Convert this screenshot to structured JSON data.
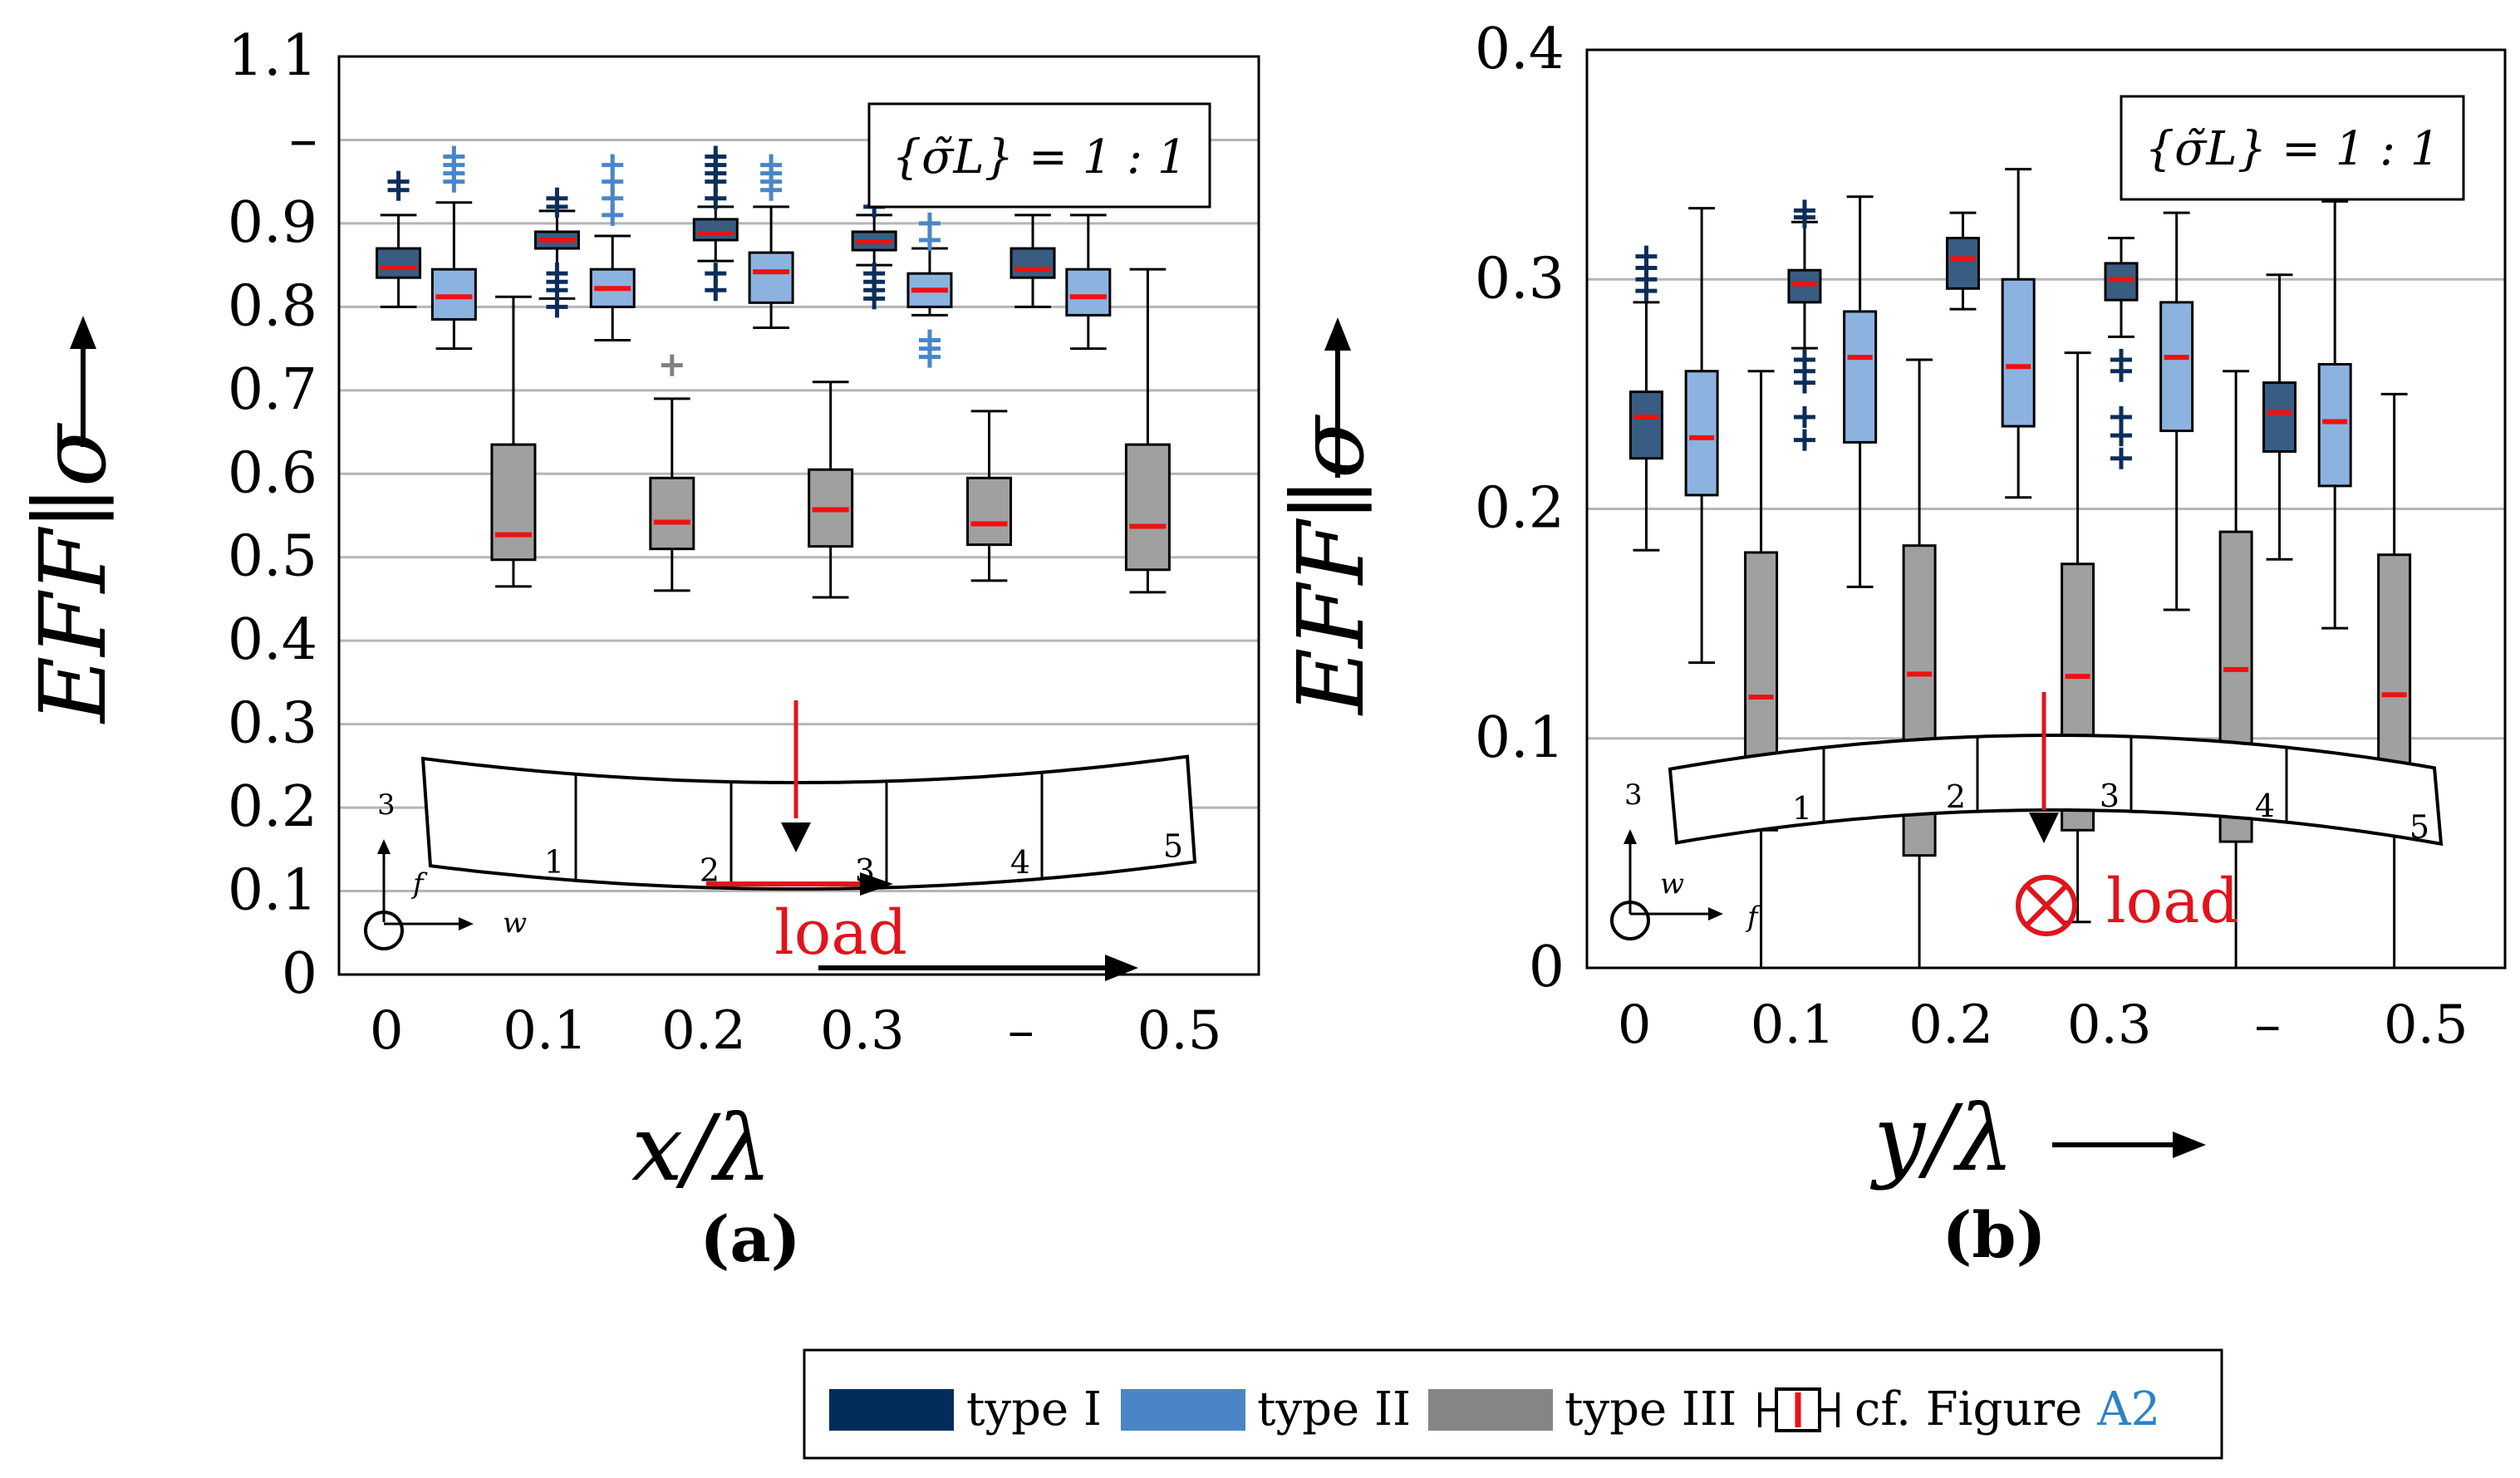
{
  "chart_data": [
    {
      "type": "box",
      "panel_label": "(a)",
      "xlabel": "x/λ",
      "ylabel": "EFF∥σ",
      "annotation": "{σ̃L} = 1 : 1",
      "ylim": [
        0,
        1.1
      ],
      "yticks": [
        "0",
        "0.1",
        "0.2",
        "0.3",
        "0.4",
        "0.5",
        "0.6",
        "0.7",
        "0.8",
        "0.9",
        "–",
        "1.1"
      ],
      "xlim": [
        -0.03,
        0.55
      ],
      "xticks": [
        "0",
        "0.1",
        "0.2",
        "0.3",
        "–",
        "0.5"
      ],
      "grid": true,
      "groups": [
        0.025,
        0.125,
        0.225,
        0.325,
        0.425
      ],
      "series": [
        {
          "name": "type I",
          "offset": -0.0175,
          "boxes": [
            {
              "whislo": 0.8,
              "q1": 0.835,
              "med": 0.847,
              "q3": 0.87,
              "whishi": 0.91,
              "fliers": [
                0.94,
                0.95
              ]
            },
            {
              "whislo": 0.81,
              "q1": 0.87,
              "med": 0.88,
              "q3": 0.89,
              "whishi": 0.915,
              "fliers": [
                0.8,
                0.82,
                0.83,
                0.84,
                0.92,
                0.93
              ]
            },
            {
              "whislo": 0.855,
              "q1": 0.88,
              "med": 0.888,
              "q3": 0.905,
              "whishi": 0.92,
              "fliers": [
                0.82,
                0.84,
                0.93,
                0.95,
                0.96,
                0.97,
                0.98
              ]
            },
            {
              "whislo": 0.85,
              "q1": 0.868,
              "med": 0.878,
              "q3": 0.89,
              "whishi": 0.91,
              "fliers": [
                0.81,
                0.82,
                0.83,
                0.84,
                0.92
              ]
            },
            {
              "whislo": 0.8,
              "q1": 0.835,
              "med": 0.845,
              "q3": 0.87,
              "whishi": 0.91,
              "fliers": []
            }
          ]
        },
        {
          "name": "type II",
          "offset": 0.0175,
          "boxes": [
            {
              "whislo": 0.75,
              "q1": 0.785,
              "med": 0.812,
              "q3": 0.845,
              "whishi": 0.925,
              "fliers": [
                0.95,
                0.96,
                0.97,
                0.98
              ]
            },
            {
              "whislo": 0.76,
              "q1": 0.8,
              "med": 0.822,
              "q3": 0.845,
              "whishi": 0.885,
              "fliers": [
                0.91,
                0.93,
                0.95,
                0.97
              ]
            },
            {
              "whislo": 0.775,
              "q1": 0.805,
              "med": 0.842,
              "q3": 0.865,
              "whishi": 0.92,
              "fliers": [
                0.94,
                0.95,
                0.96,
                0.97
              ]
            },
            {
              "whislo": 0.79,
              "q1": 0.8,
              "med": 0.82,
              "q3": 0.84,
              "whishi": 0.87,
              "fliers": [
                0.74,
                0.75,
                0.76,
                0.88,
                0.9
              ]
            },
            {
              "whislo": 0.75,
              "q1": 0.79,
              "med": 0.812,
              "q3": 0.845,
              "whishi": 0.91,
              "fliers": []
            }
          ]
        },
        {
          "name": "type III",
          "offset": 0.055,
          "boxes": [
            {
              "whislo": 0.465,
              "q1": 0.497,
              "med": 0.527,
              "q3": 0.635,
              "whishi": 0.812,
              "fliers": []
            },
            {
              "whislo": 0.46,
              "q1": 0.51,
              "med": 0.542,
              "q3": 0.595,
              "whishi": 0.69,
              "fliers": [
                0.73
              ]
            },
            {
              "whislo": 0.452,
              "q1": 0.513,
              "med": 0.557,
              "q3": 0.605,
              "whishi": 0.71,
              "fliers": []
            },
            {
              "whislo": 0.472,
              "q1": 0.515,
              "med": 0.54,
              "q3": 0.595,
              "whishi": 0.675,
              "fliers": []
            },
            {
              "whislo": 0.458,
              "q1": 0.485,
              "med": 0.537,
              "q3": 0.635,
              "whishi": 0.845,
              "fliers": []
            }
          ]
        }
      ],
      "inset": {
        "segment_labels": [
          "1",
          "2",
          "3",
          "4",
          "5"
        ],
        "axis_labels": [
          "3",
          "f",
          "w"
        ],
        "load_label": "load"
      }
    },
    {
      "type": "box",
      "panel_label": "(b)",
      "xlabel": "y/λ",
      "ylabel": "EFF∥σ",
      "annotation": "{σ̃L} = 1 : 1",
      "ylim": [
        0,
        0.4
      ],
      "yticks": [
        "0",
        "0.1",
        "0.2",
        "0.3",
        "0.4"
      ],
      "xlim": [
        -0.03,
        0.55
      ],
      "xticks": [
        "0",
        "0.1",
        "0.2",
        "0.3",
        "–",
        "0.5"
      ],
      "grid": true,
      "groups": [
        0.025,
        0.125,
        0.225,
        0.325,
        0.425
      ],
      "series": [
        {
          "name": "type I",
          "offset": -0.0175,
          "boxes": [
            {
              "whislo": 0.182,
              "q1": 0.222,
              "med": 0.24,
              "q3": 0.251,
              "whishi": 0.29,
              "fliers": [
                0.295,
                0.3,
                0.305,
                0.31
              ]
            },
            {
              "whislo": 0.27,
              "q1": 0.29,
              "med": 0.298,
              "q3": 0.304,
              "whishi": 0.325,
              "fliers": [
                0.23,
                0.24,
                0.255,
                0.26,
                0.265,
                0.327,
                0.33
              ]
            },
            {
              "whislo": 0.287,
              "q1": 0.296,
              "med": 0.309,
              "q3": 0.318,
              "whishi": 0.329,
              "fliers": []
            },
            {
              "whislo": 0.275,
              "q1": 0.291,
              "med": 0.3,
              "q3": 0.307,
              "whishi": 0.318,
              "fliers": [
                0.222,
                0.232,
                0.24,
                0.26,
                0.265
              ]
            },
            {
              "whislo": 0.178,
              "q1": 0.225,
              "med": 0.242,
              "q3": 0.255,
              "whishi": 0.302,
              "fliers": []
            }
          ]
        },
        {
          "name": "type II",
          "offset": 0.0175,
          "boxes": [
            {
              "whislo": 0.133,
              "q1": 0.206,
              "med": 0.231,
              "q3": 0.26,
              "whishi": 0.331,
              "fliers": []
            },
            {
              "whislo": 0.166,
              "q1": 0.229,
              "med": 0.266,
              "q3": 0.286,
              "whishi": 0.336,
              "fliers": []
            },
            {
              "whislo": 0.205,
              "q1": 0.236,
              "med": 0.262,
              "q3": 0.3,
              "whishi": 0.348,
              "fliers": []
            },
            {
              "whislo": 0.156,
              "q1": 0.234,
              "med": 0.266,
              "q3": 0.29,
              "whishi": 0.329,
              "fliers": []
            },
            {
              "whislo": 0.148,
              "q1": 0.21,
              "med": 0.238,
              "q3": 0.263,
              "whishi": 0.334,
              "fliers": []
            }
          ]
        },
        {
          "name": "type III",
          "offset": 0.055,
          "boxes": [
            {
              "whislo": 0.0,
              "q1": 0.06,
              "med": 0.118,
              "q3": 0.181,
              "whishi": 0.26,
              "fliers": []
            },
            {
              "whislo": 0.0,
              "q1": 0.049,
              "med": 0.128,
              "q3": 0.184,
              "whishi": 0.265,
              "fliers": []
            },
            {
              "whislo": 0.02,
              "q1": 0.06,
              "med": 0.127,
              "q3": 0.176,
              "whishi": 0.268,
              "fliers": []
            },
            {
              "whislo": 0.0,
              "q1": 0.055,
              "med": 0.13,
              "q3": 0.19,
              "whishi": 0.26,
              "fliers": []
            },
            {
              "whislo": 0.0,
              "q1": 0.06,
              "med": 0.119,
              "q3": 0.18,
              "whishi": 0.25,
              "fliers": []
            }
          ]
        }
      ],
      "inset": {
        "segment_labels": [
          "1",
          "2",
          "3",
          "4",
          "5"
        ],
        "axis_labels": [
          "3",
          "w",
          "f"
        ],
        "load_label": "load"
      }
    }
  ],
  "legend": {
    "items": [
      {
        "label": "type I",
        "color": "#002d5a"
      },
      {
        "label": "type II",
        "color": "#4a86c6"
      },
      {
        "label": "type III",
        "color": "#858585"
      }
    ],
    "ref_prefix": "cf. Figure",
    "ref_link": "A2"
  },
  "colors": {
    "type_I_box": "#395d82",
    "type_I_flier": "#0b2e59",
    "type_II_box": "#8cb3e0",
    "type_II_flier": "#4a86c6",
    "type_III_box": "#a0a0a0",
    "type_III_flier": "#808080",
    "median": "#ee1111",
    "grid": "#b5b5b5",
    "load": "#e0141c",
    "link": "#2c82c4"
  }
}
